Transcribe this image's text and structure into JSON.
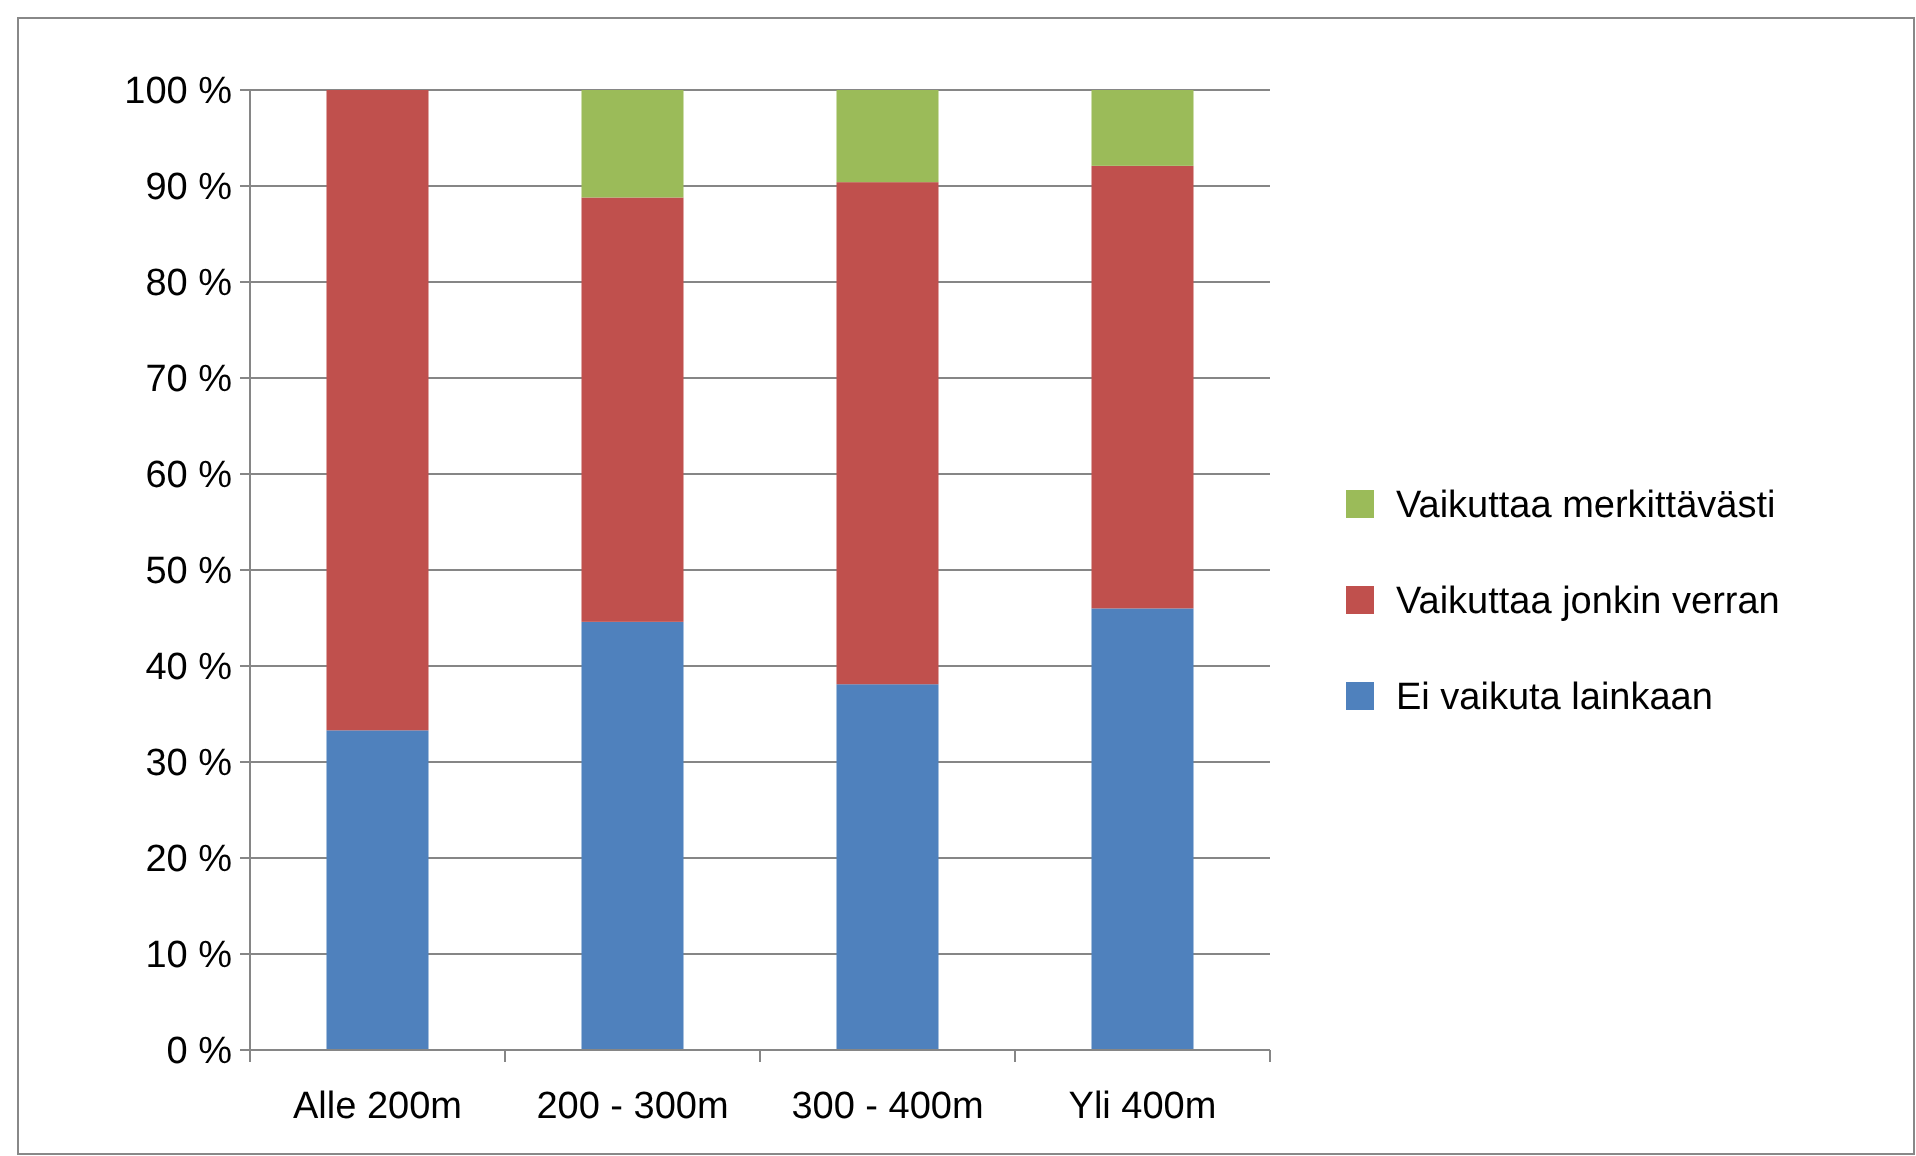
{
  "chart_data": {
    "type": "bar",
    "stacked": true,
    "categories": [
      "Alle 200m",
      "200 - 300m",
      "300 - 400m",
      "Yli 400m"
    ],
    "series": [
      {
        "name": "Ei vaikuta lainkaan",
        "color": "#4f81bd",
        "values": [
          33.3,
          44.6,
          38.1,
          46.0
        ]
      },
      {
        "name": "Vaikuttaa jonkin verran",
        "color": "#c0504d",
        "values": [
          66.7,
          44.2,
          52.3,
          46.1
        ]
      },
      {
        "name": "Vaikuttaa merkittävästi",
        "color": "#9bbb59",
        "values": [
          0,
          11.2,
          9.6,
          7.9
        ]
      }
    ],
    "ylim": [
      0,
      100
    ],
    "yticks": [
      {
        "value": 0,
        "label": "0 %"
      },
      {
        "value": 10,
        "label": "10 %"
      },
      {
        "value": 20,
        "label": "20 %"
      },
      {
        "value": 30,
        "label": "30 %"
      },
      {
        "value": 40,
        "label": "40 %"
      },
      {
        "value": 50,
        "label": "50 %"
      },
      {
        "value": 60,
        "label": "60 %"
      },
      {
        "value": 70,
        "label": "70 %"
      },
      {
        "value": 80,
        "label": "80 %"
      },
      {
        "value": 90,
        "label": "90 %"
      },
      {
        "value": 100,
        "label": "100 %"
      }
    ],
    "grid": "y",
    "legend": "right"
  }
}
